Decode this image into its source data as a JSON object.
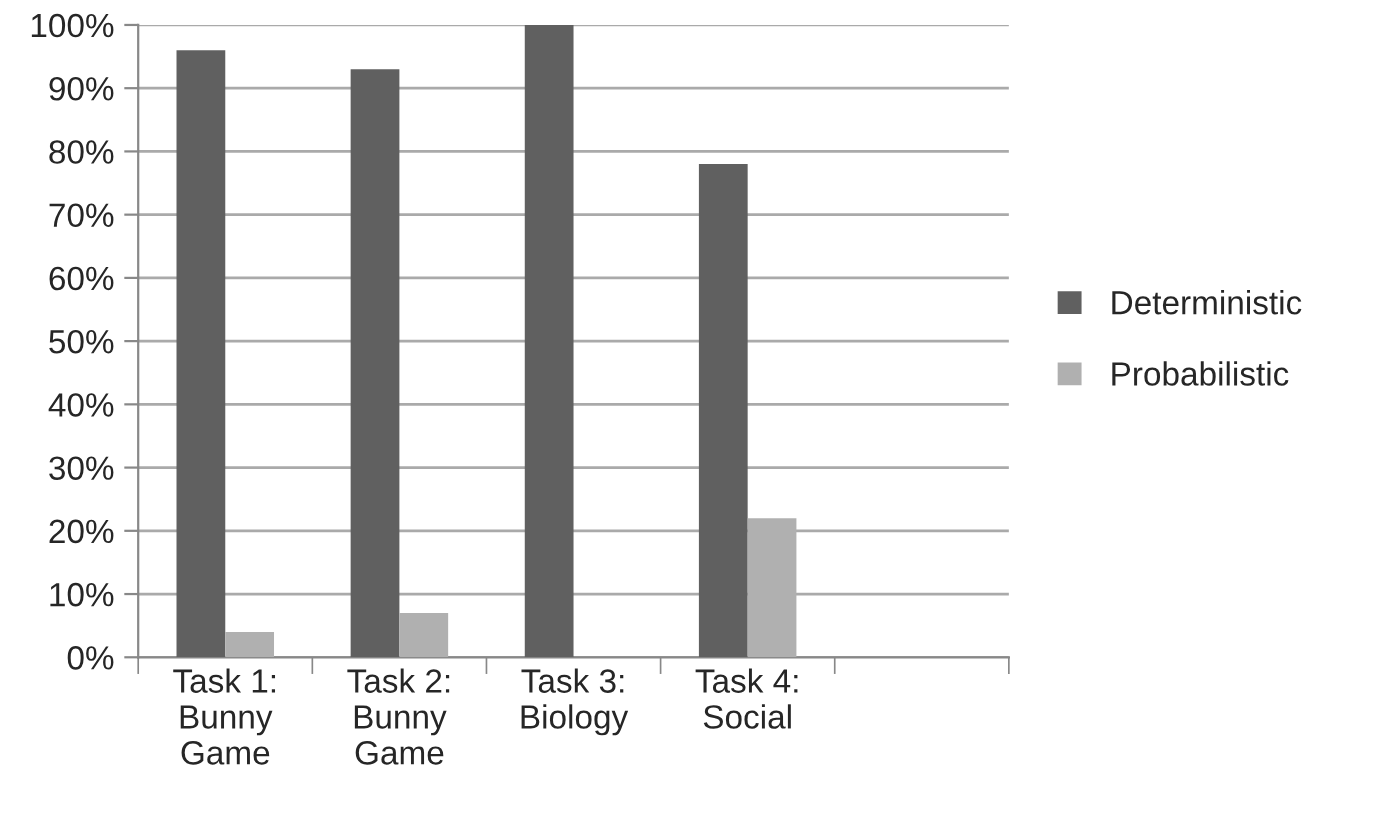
{
  "chart_data": {
    "type": "bar",
    "categories": [
      "Task 1:\nBunny\nGame",
      "Task 2:\nBunny\nGame",
      "Task 3:\nBiology",
      "Task 4:\nSocial",
      null
    ],
    "series": [
      {
        "name": "Deterministic",
        "color": "#606060",
        "values": [
          96,
          93,
          100,
          78,
          null
        ]
      },
      {
        "name": "Probabilistic",
        "color": "#b0b0b0",
        "values": [
          4,
          7,
          0,
          22,
          null
        ]
      }
    ],
    "ylim": [
      0,
      100
    ],
    "yticks": [
      {
        "value": 0,
        "label": "0%"
      },
      {
        "value": 10,
        "label": "10%"
      },
      {
        "value": 20,
        "label": "20%"
      },
      {
        "value": 30,
        "label": "30%"
      },
      {
        "value": 40,
        "label": "40%"
      },
      {
        "value": 50,
        "label": "50%"
      },
      {
        "value": 60,
        "label": "60%"
      },
      {
        "value": 70,
        "label": "70%"
      },
      {
        "value": 80,
        "label": "80%"
      },
      {
        "value": 90,
        "label": "90%"
      },
      {
        "value": 100,
        "label": "100%"
      }
    ],
    "grid": "y",
    "legend": "right"
  }
}
